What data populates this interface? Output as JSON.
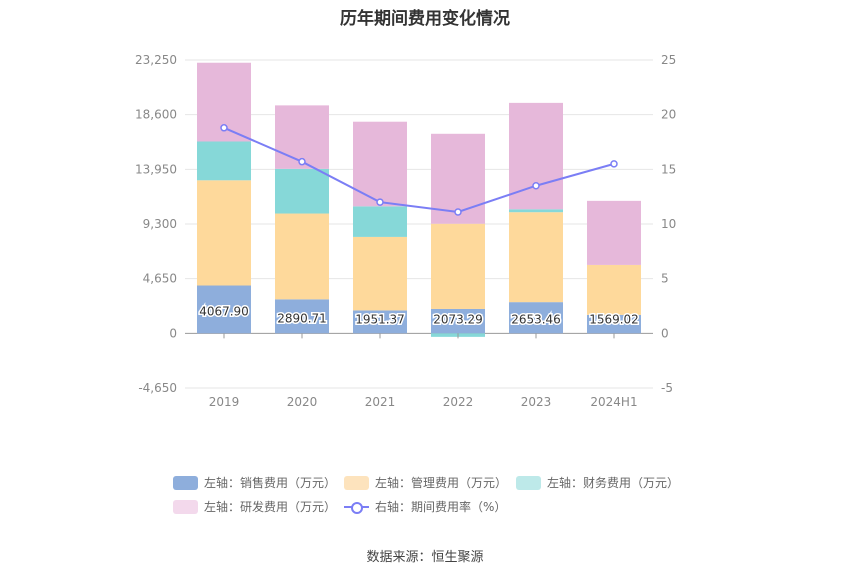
{
  "chart_data": {
    "type": "bar",
    "title": "历年期间费用变化情况",
    "categories": [
      "2019",
      "2020",
      "2021",
      "2022",
      "2023",
      "2024H1"
    ],
    "left_axis": {
      "min": -4650,
      "max": 23250,
      "ticks": [
        "-4,650",
        "0",
        "4,650",
        "9,300",
        "13,950",
        "18,600",
        "23,250"
      ],
      "tick_values": [
        -4650,
        0,
        4650,
        9300,
        13950,
        18600,
        23250
      ]
    },
    "right_axis": {
      "min": -5,
      "max": 25,
      "ticks": [
        "-5",
        "0",
        "5",
        "10",
        "15",
        "20",
        "25"
      ],
      "tick_values": [
        -5,
        0,
        5,
        10,
        15,
        20,
        25
      ]
    },
    "series": [
      {
        "name": "左轴：销售费用（万元）",
        "type": "bar",
        "color": "#8eaedc",
        "values": [
          4067.9,
          2890.71,
          1951.37,
          2073.29,
          2653.46,
          1569.02
        ],
        "labels": [
          "4067.90",
          "2890.71",
          "1951.37",
          "2073.29",
          "2653.46",
          "1569.02"
        ]
      },
      {
        "name": "左轴：管理费用（万元）",
        "type": "bar",
        "color": "#fed99b",
        "values": [
          8950,
          7300,
          6250,
          7250,
          7650,
          4250
        ]
      },
      {
        "name": "左轴：财务费用（万元）",
        "type": "bar",
        "color": "#86d8d8",
        "values": [
          3300,
          3800,
          2600,
          -300,
          250,
          0
        ]
      },
      {
        "name": "左轴：研发费用（万元）",
        "type": "bar",
        "color": "#e6b8da",
        "values": [
          6700,
          5400,
          7200,
          7650,
          9050,
          5450
        ]
      },
      {
        "name": "右轴：期间费用率（%）",
        "type": "line",
        "color": "#7b7ef5",
        "values": [
          18.8,
          15.7,
          12.0,
          11.1,
          13.5,
          15.5
        ]
      }
    ]
  },
  "source": "数据来源：恒生聚源",
  "legend_swatches": {
    "sales": "#8eaedc",
    "admin": "#fde3bd",
    "finance": "#bde9e9",
    "rd": "#f3d9ec"
  }
}
